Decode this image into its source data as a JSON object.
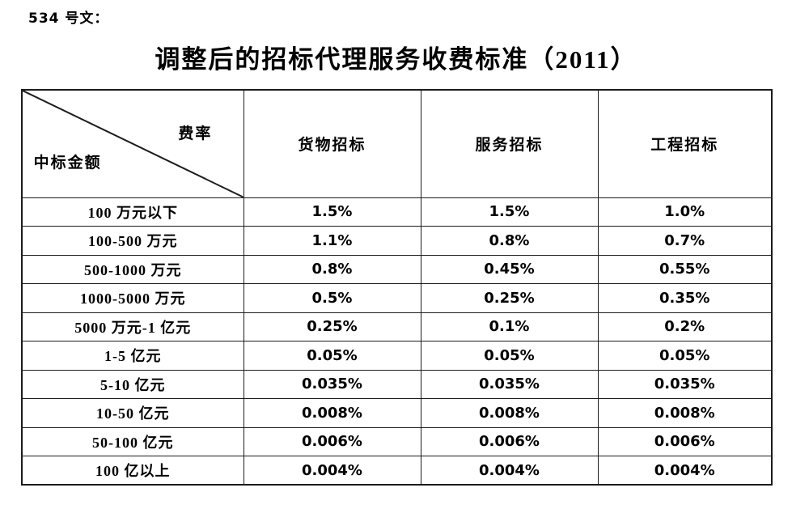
{
  "page": {
    "doc_ref": "534 号文：",
    "title": "调整后的招标代理服务收费标准（2011）"
  },
  "table": {
    "corner": {
      "top_right_label": "费率",
      "bottom_left_label": "中标金额"
    },
    "columns": [
      "货物招标",
      "服务招标",
      "工程招标"
    ],
    "rows": [
      {
        "label": "100 万元以下",
        "values": [
          "1.5%",
          "1.5%",
          "1.0%"
        ]
      },
      {
        "label": "100-500 万元",
        "values": [
          "1.1%",
          "0.8%",
          "0.7%"
        ]
      },
      {
        "label": "500-1000 万元",
        "values": [
          "0.8%",
          "0.45%",
          "0.55%"
        ]
      },
      {
        "label": "1000-5000 万元",
        "values": [
          "0.5%",
          "0.25%",
          "0.35%"
        ]
      },
      {
        "label": "5000 万元-1 亿元",
        "values": [
          "0.25%",
          "0.1%",
          "0.2%"
        ]
      },
      {
        "label": "1-5 亿元",
        "values": [
          "0.05%",
          "0.05%",
          "0.05%"
        ]
      },
      {
        "label": "5-10 亿元",
        "values": [
          "0.035%",
          "0.035%",
          "0.035%"
        ]
      },
      {
        "label": "10-50 亿元",
        "values": [
          "0.008%",
          "0.008%",
          "0.008%"
        ]
      },
      {
        "label": "50-100 亿元",
        "values": [
          "0.006%",
          "0.006%",
          "0.006%"
        ]
      },
      {
        "label": "100 亿以上",
        "values": [
          "0.004%",
          "0.004%",
          "0.004%"
        ]
      }
    ]
  },
  "colors": {
    "text": "#000000",
    "border": "#1c1c1c",
    "background": "#ffffff"
  }
}
